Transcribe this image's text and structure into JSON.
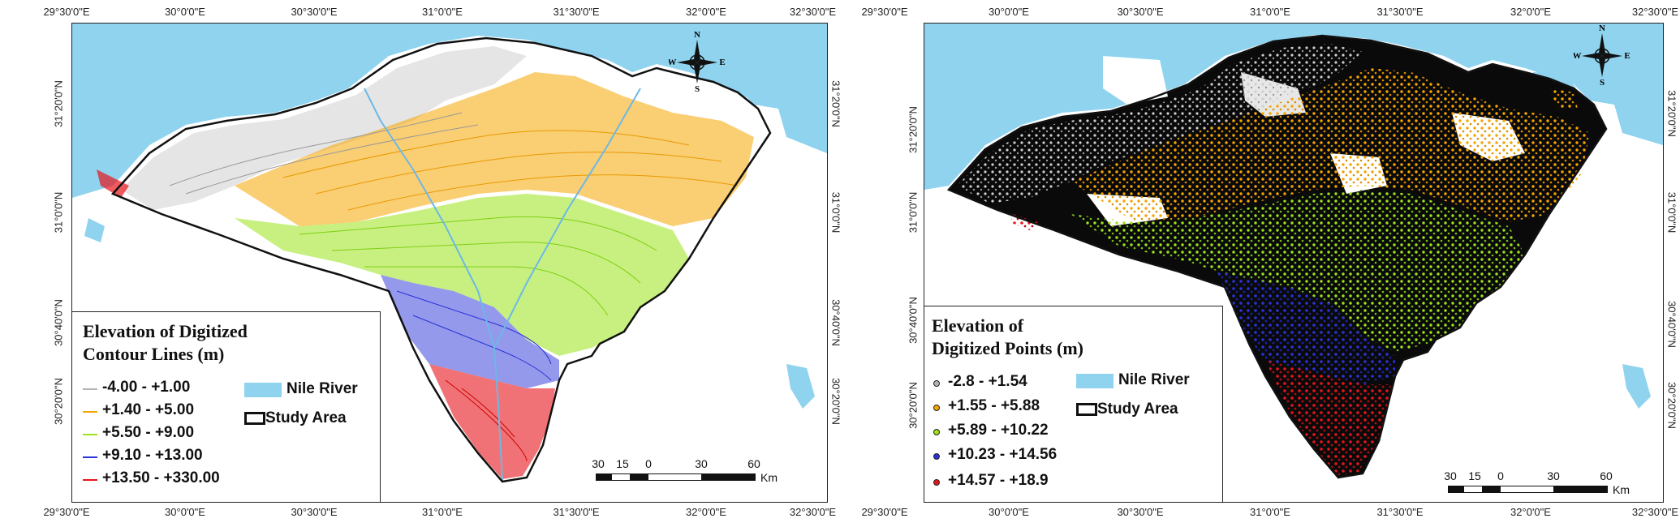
{
  "maps": [
    {
      "legend": {
        "title_line1": "Elevation of Digitized",
        "title_line2": "Contour Lines (m)",
        "classes": [
          {
            "label": "-4.00 - +1.00",
            "color": "#b3b3b3"
          },
          {
            "label": "+1.40 - +5.00",
            "color": "#f5a500"
          },
          {
            "label": "+5.50 - +9.00",
            "color": "#9be31a"
          },
          {
            "label": "+9.10 - +13.00",
            "color": "#2a33d8"
          },
          {
            "label": "+13.50 - +330.00",
            "color": "#e8141b"
          }
        ],
        "nile_label": "Nile River",
        "study_label": "Study Area"
      }
    },
    {
      "legend": {
        "title_line1": "Elevation of",
        "title_line2": "Digitized Points (m)",
        "classes": [
          {
            "label": "-2.8 - +1.54",
            "color": "#b3b3b3"
          },
          {
            "label": "+1.55 - +5.88",
            "color": "#f5a500"
          },
          {
            "label": "+5.89 - +10.22",
            "color": "#9be31a"
          },
          {
            "label": "+10.23 - +14.56",
            "color": "#2a33d8"
          },
          {
            "label": "+14.57 - +18.9",
            "color": "#e8141b"
          }
        ],
        "nile_label": "Nile River",
        "study_label": "Study Area"
      }
    }
  ],
  "lon_labels": [
    "29°30'0\"E",
    "30°0'0\"E",
    "30°30'0\"E",
    "31°0'0\"E",
    "31°30'0\"E",
    "32°0'0\"E",
    "32°30'0\"E"
  ],
  "lat_labels": [
    "31°20'0\"N",
    "31°0'0\"N",
    "30°40'0\"N",
    "30°20'0\"N"
  ],
  "scale": {
    "ticks": [
      "30",
      "15",
      "0",
      "30",
      "60"
    ],
    "unit": "Km"
  },
  "compass": {
    "n": "N",
    "s": "S",
    "e": "E",
    "w": "W"
  },
  "colors": {
    "sea": "#8fd3ef",
    "river": "#6cb8e6",
    "boundary": "#111111",
    "nile_swatch": "#8fd3ef"
  }
}
